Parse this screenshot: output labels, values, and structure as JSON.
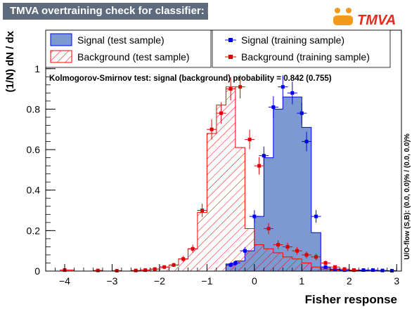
{
  "title": "TMVA overtraining check for classifier: Fisher",
  "logo_text": "TMVA",
  "colors": {
    "signal_fill": "#7d99d1",
    "signal_line": "#0000ee",
    "background_line": "#ff0000",
    "background_point": "#dd0000",
    "title_bg": "#5d6b7d",
    "logo_orange": "#f39a1c",
    "logo_red": "#e52c1f"
  },
  "legend": {
    "signal_test": "Signal (test sample)",
    "background_test": "Background (test sample)",
    "signal_train": "Signal (training sample)",
    "background_train": "Background (training sample)"
  },
  "ks_text": "Kolmogorov-Smirnov test: signal (background) probability = 0.842 (0.755)",
  "overflow_text": "U/O-flow (S,B): (0.0, 0.0)% / (0.0, 0.0)%",
  "chart_data": {
    "type": "histogram",
    "xlabel": "Fisher response",
    "ylabel": "(1/N) dN / dx",
    "xlim": [
      -4.4,
      3.1
    ],
    "ylim": [
      0,
      1.19
    ],
    "bin_edges": [
      -4.4,
      -4.2,
      -4.0,
      -3.8,
      -3.6,
      -3.4,
      -3.2,
      -3.0,
      -2.8,
      -2.6,
      -2.4,
      -2.2,
      -2.0,
      -1.8,
      -1.6,
      -1.4,
      -1.2,
      -1.0,
      -0.8,
      -0.6,
      -0.4,
      -0.2,
      0.0,
      0.2,
      0.4,
      0.6,
      0.8,
      1.0,
      1.2,
      1.4,
      1.6,
      1.8,
      2.0,
      2.2,
      2.4,
      2.6,
      2.8,
      3.0
    ],
    "x_ticks": [
      -4,
      -3,
      -2,
      -1,
      0,
      1,
      2,
      3
    ],
    "y_ticks": [
      0,
      0.2,
      0.4,
      0.6,
      0.8,
      1
    ],
    "y_tick_labels": [
      "0",
      "0.2",
      "0.4",
      "0.6",
      "0.8",
      "1"
    ],
    "series": [
      {
        "name": "Signal (test sample)",
        "style": "filled",
        "values": [
          0,
          0,
          0,
          0,
          0,
          0,
          0,
          0,
          0,
          0,
          0,
          0,
          0,
          0,
          0,
          0,
          0,
          0,
          0,
          0.035,
          0.05,
          0.1,
          0.27,
          0.56,
          0.8,
          0.86,
          0.86,
          0.71,
          0.19,
          0.02,
          0.01,
          0.005,
          0.003,
          0.002,
          0.001,
          0,
          0
        ]
      },
      {
        "name": "Background (test sample)",
        "style": "hatched",
        "values": [
          0,
          0,
          0.005,
          0,
          0,
          0,
          0,
          0,
          0,
          0,
          0.005,
          0.01,
          0.02,
          0.03,
          0.06,
          0.11,
          0.29,
          0.68,
          0.82,
          0.91,
          0.61,
          0.21,
          0.13,
          0.11,
          0.09,
          0.07,
          0.06,
          0.04,
          0.02,
          0.01,
          0.005,
          0,
          0,
          0,
          0,
          0,
          0
        ]
      },
      {
        "name": "Signal (training sample)",
        "style": "points",
        "points": [
          [
            -0.5,
            0.03
          ],
          [
            -0.4,
            0.04
          ],
          [
            -0.2,
            0.1
          ],
          [
            0.0,
            0.27
          ],
          [
            0.2,
            0.57
          ],
          [
            0.4,
            0.81
          ],
          [
            0.6,
            0.91
          ],
          [
            0.8,
            0.88
          ],
          [
            1.0,
            0.78
          ],
          [
            1.1,
            0.64
          ],
          [
            1.3,
            0.27
          ],
          [
            1.5,
            0.02
          ],
          [
            1.7,
            0.01
          ],
          [
            1.9,
            0.005
          ],
          [
            2.1,
            0.005
          ],
          [
            2.3,
            0.005
          ],
          [
            2.5,
            0.005
          ],
          [
            2.7,
            0.003
          ],
          [
            2.9,
            0.002
          ]
        ]
      },
      {
        "name": "Background (training sample)",
        "style": "points",
        "points": [
          [
            -4.0,
            0.005
          ],
          [
            -3.3,
            0.003
          ],
          [
            -2.9,
            0.002
          ],
          [
            -2.5,
            0.003
          ],
          [
            -2.3,
            0.005
          ],
          [
            -2.1,
            0.01
          ],
          [
            -1.9,
            0.02
          ],
          [
            -1.7,
            0.03
          ],
          [
            -1.5,
            0.06
          ],
          [
            -1.3,
            0.11
          ],
          [
            -1.1,
            0.3
          ],
          [
            -0.9,
            0.7
          ],
          [
            -0.7,
            0.78
          ],
          [
            -0.5,
            0.9
          ],
          [
            -0.3,
            0.91
          ],
          [
            -0.1,
            0.65
          ],
          [
            0.1,
            0.52
          ],
          [
            0.3,
            0.21
          ],
          [
            0.5,
            0.13
          ],
          [
            0.7,
            0.12
          ],
          [
            0.9,
            0.1
          ],
          [
            1.1,
            0.08
          ],
          [
            1.3,
            0.07
          ],
          [
            1.5,
            0.04
          ],
          [
            1.7,
            0.02
          ],
          [
            1.9,
            0.01
          ],
          [
            2.1,
            0.005
          ]
        ]
      }
    ]
  }
}
